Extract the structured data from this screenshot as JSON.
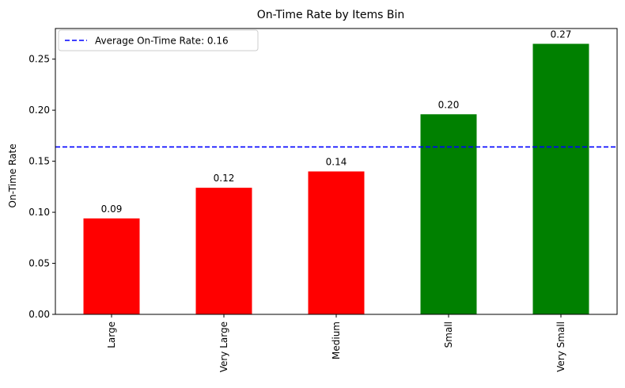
{
  "chart_data": {
    "type": "bar",
    "title": "On-Time Rate by Items Bin",
    "xlabel": "",
    "ylabel": "On-Time Rate",
    "categories": [
      "Large",
      "Very Large",
      "Medium",
      "Small",
      "Very Small"
    ],
    "values": [
      0.094,
      0.124,
      0.14,
      0.196,
      0.265
    ],
    "value_labels": [
      "0.09",
      "0.12",
      "0.14",
      "0.20",
      "0.27"
    ],
    "bar_colors": [
      "#ff0000",
      "#ff0000",
      "#ff0000",
      "#008000",
      "#008000"
    ],
    "ylim": [
      0,
      0.28
    ],
    "yticks": [
      0.0,
      0.05,
      0.1,
      0.15,
      0.2,
      0.25
    ],
    "ytick_labels": [
      "0.00",
      "0.05",
      "0.10",
      "0.15",
      "0.20",
      "0.25"
    ],
    "reference_line": {
      "value": 0.164,
      "label": "Average On-Time Rate: 0.16",
      "color": "#0000ff",
      "style": "dashed"
    },
    "legend": {
      "position": "top-left"
    },
    "grid": false
  }
}
